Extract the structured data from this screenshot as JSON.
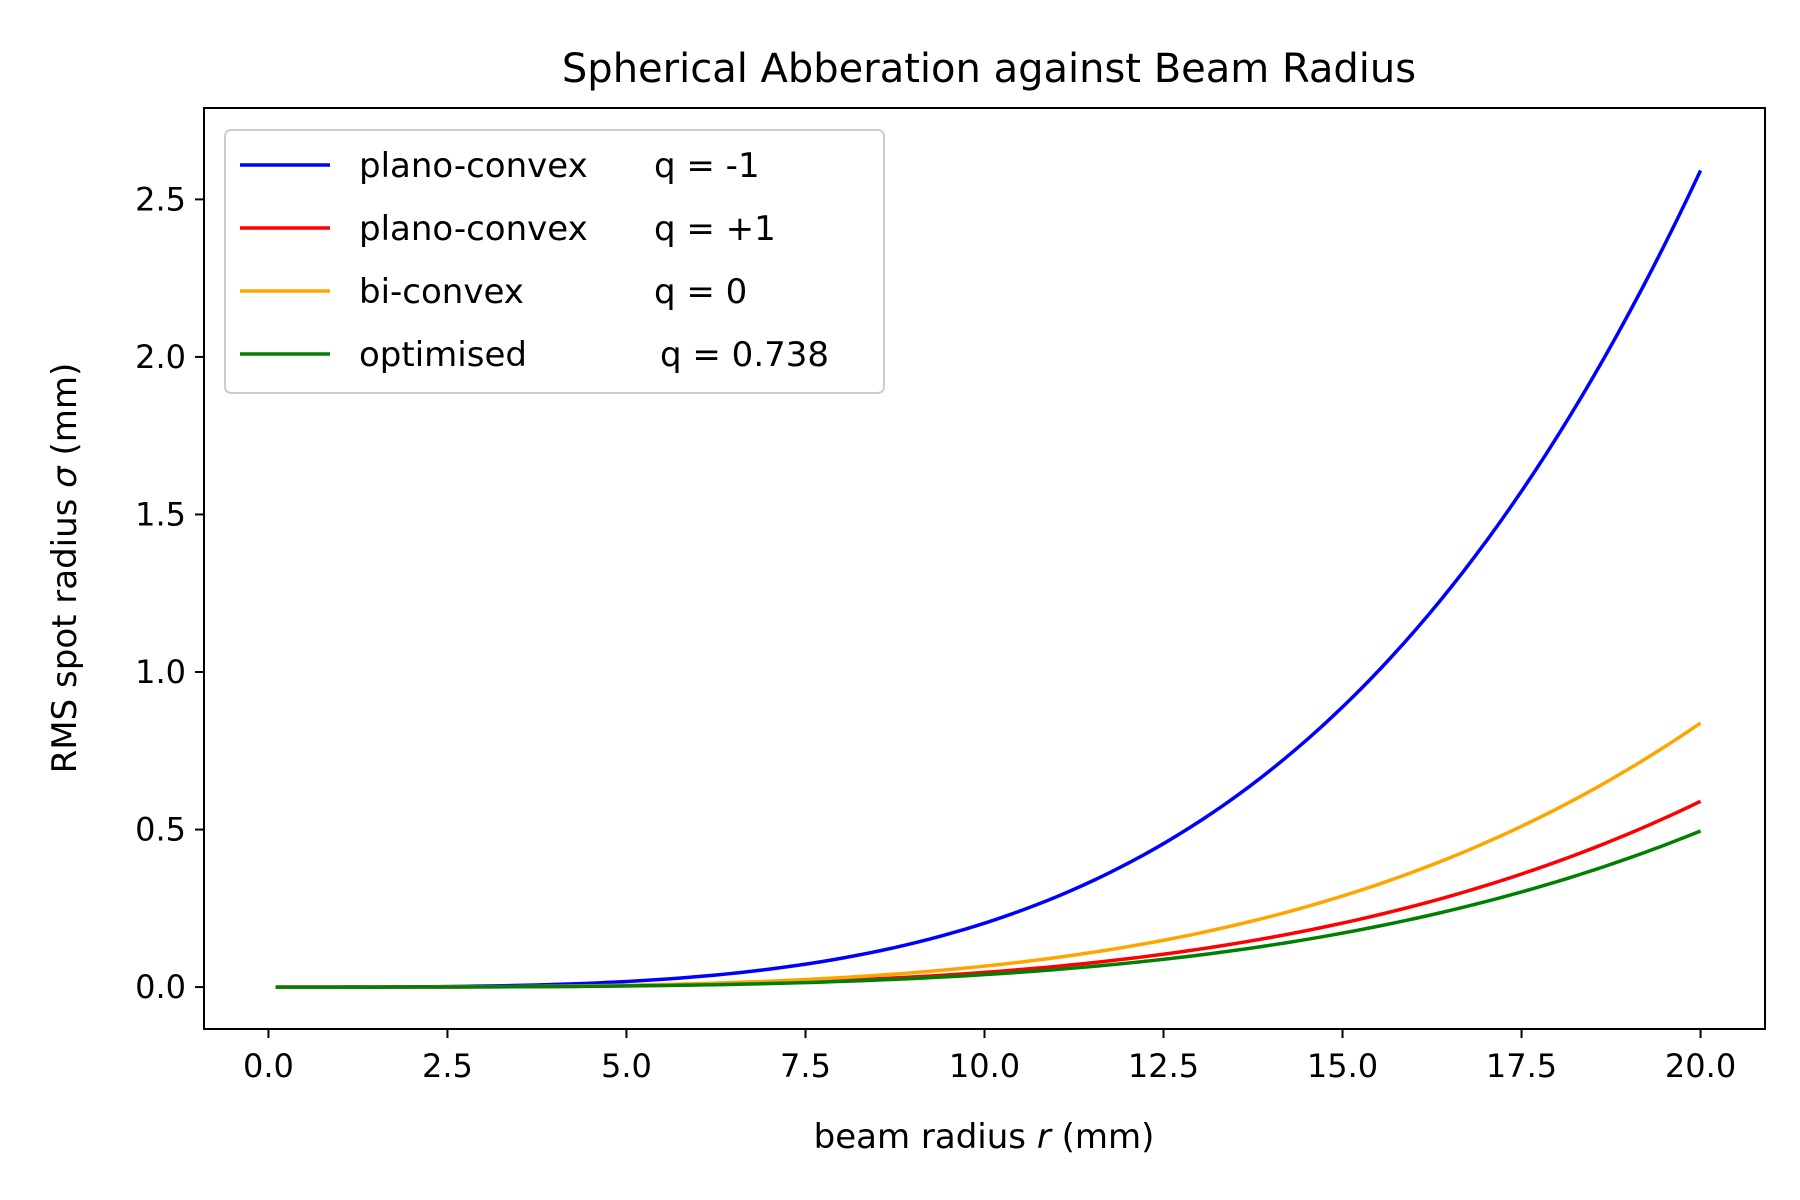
{
  "chart_data": {
    "type": "line",
    "title": "Spherical Abberation against Beam Radius",
    "xlabel": {
      "pre": "beam radius ",
      "var": "r",
      "post": " (mm)"
    },
    "ylabel": {
      "pre": "RMS spot radius ",
      "var": "σ",
      "post": " (mm)"
    },
    "xlim": [
      -0.9,
      20.9
    ],
    "ylim": [
      -0.133,
      2.79
    ],
    "xticks": [
      0.0,
      2.5,
      5.0,
      7.5,
      10.0,
      12.5,
      15.0,
      17.5,
      20.0
    ],
    "xtick_labels": [
      "0.0",
      "2.5",
      "5.0",
      "7.5",
      "10.0",
      "12.5",
      "15.0",
      "17.5",
      "20.0"
    ],
    "yticks": [
      0.0,
      0.5,
      1.0,
      1.5,
      2.0,
      2.5
    ],
    "ytick_labels": [
      "0.0",
      "0.5",
      "1.0",
      "1.5",
      "2.0",
      "2.5"
    ],
    "grid": false,
    "legend_position": "upper-left",
    "x": [
      0.1,
      2.5,
      5.0,
      7.5,
      10.0,
      12.5,
      15.0,
      17.5,
      20.0
    ],
    "series": [
      {
        "name": "plano-convex q = -1",
        "legend_left": "plano-convex",
        "legend_right": "q = -1",
        "color": "#0000ff",
        "values": [
          0.0,
          0.0042,
          0.033,
          0.112,
          0.266,
          0.52,
          0.898,
          1.427,
          2.66
        ]
      },
      {
        "name": "plano-convex q = +1",
        "legend_left": "plano-convex",
        "legend_right": "q = +1",
        "color": "#ff0000",
        "values": [
          0.0,
          0.00095,
          0.0076,
          0.0256,
          0.0607,
          0.119,
          0.205,
          0.326,
          0.605
        ]
      },
      {
        "name": "bi-convex q = 0",
        "legend_left": "bi-convex",
        "legend_right": "q = 0",
        "color": "#ffa500",
        "values": [
          0.0,
          0.00135,
          0.0108,
          0.0365,
          0.0865,
          0.169,
          0.292,
          0.464,
          0.86
        ]
      },
      {
        "name": "optimised q = 0.738",
        "legend_left": "optimised",
        "legend_right": "q = 0.738",
        "color": "#008000",
        "values": [
          0.0,
          0.0008,
          0.0064,
          0.0216,
          0.0513,
          0.1,
          0.173,
          0.275,
          0.508
        ]
      }
    ]
  }
}
